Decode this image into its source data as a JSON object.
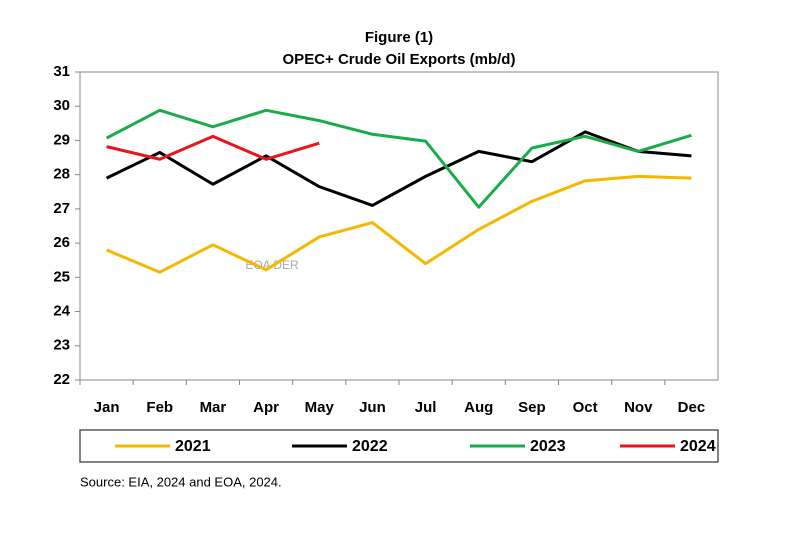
{
  "chart_data": {
    "type": "line",
    "title": "Figure (1)",
    "subtitle": "OPEC+ Crude Oil Exports (mb/d)",
    "categories": [
      "Jan",
      "Feb",
      "Mar",
      "Apr",
      "May",
      "Jun",
      "Jul",
      "Aug",
      "Sep",
      "Oct",
      "Nov",
      "Dec"
    ],
    "series": [
      {
        "name": "2021",
        "color": "#f5b800",
        "values": [
          25.8,
          25.15,
          25.95,
          25.22,
          26.18,
          26.6,
          25.4,
          26.4,
          27.22,
          27.82,
          27.95,
          27.9
        ]
      },
      {
        "name": "2022",
        "color": "#000000",
        "values": [
          27.9,
          28.65,
          27.72,
          28.55,
          27.65,
          27.1,
          27.95,
          28.68,
          28.38,
          29.25,
          28.68,
          28.55
        ]
      },
      {
        "name": "2023",
        "color": "#1aab4b",
        "values": [
          29.07,
          29.88,
          29.4,
          29.88,
          29.58,
          29.18,
          28.98,
          27.05,
          28.78,
          29.12,
          28.68,
          29.15
        ]
      },
      {
        "name": "2024",
        "color": "#e8161b",
        "values": [
          28.82,
          28.45,
          29.12,
          28.45,
          28.92,
          null,
          null,
          null,
          null,
          null,
          null,
          null
        ]
      }
    ],
    "ylim": [
      22,
      31
    ],
    "yticks": [
      22,
      23,
      24,
      25,
      26,
      27,
      28,
      29,
      30,
      31
    ],
    "grid": false,
    "watermark": "EOA DER",
    "source": "Source: EIA, 2024 and EOA, 2024."
  }
}
